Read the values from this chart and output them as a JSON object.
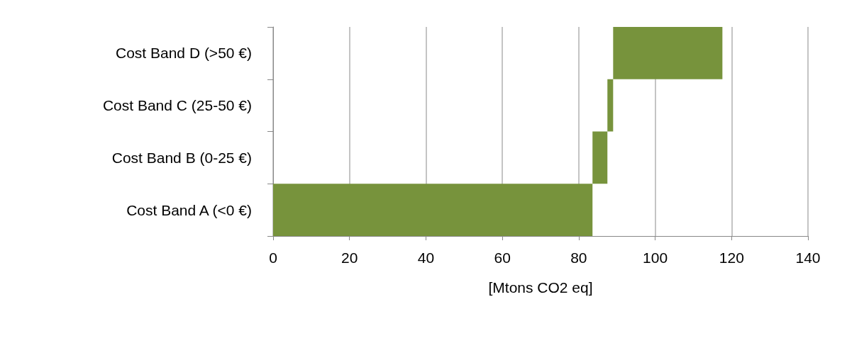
{
  "chart_data": {
    "type": "bar",
    "orientation": "horizontal",
    "xlabel": "[Mtons CO2 eq]",
    "categories": [
      "Cost Band D (>50 €)",
      "Cost Band C (25-50 €)",
      "Cost Band B (0-25 €)",
      "Cost Band A (<0 €)"
    ],
    "values": [
      28.6,
      1.5,
      3.9,
      83.6
    ],
    "base": [
      89.0,
      87.5,
      83.6,
      0
    ],
    "color": "#77933c",
    "xlim": [
      0,
      140
    ],
    "xticks": [
      0,
      20,
      40,
      60,
      80,
      100,
      120,
      140
    ],
    "grid": "x"
  }
}
